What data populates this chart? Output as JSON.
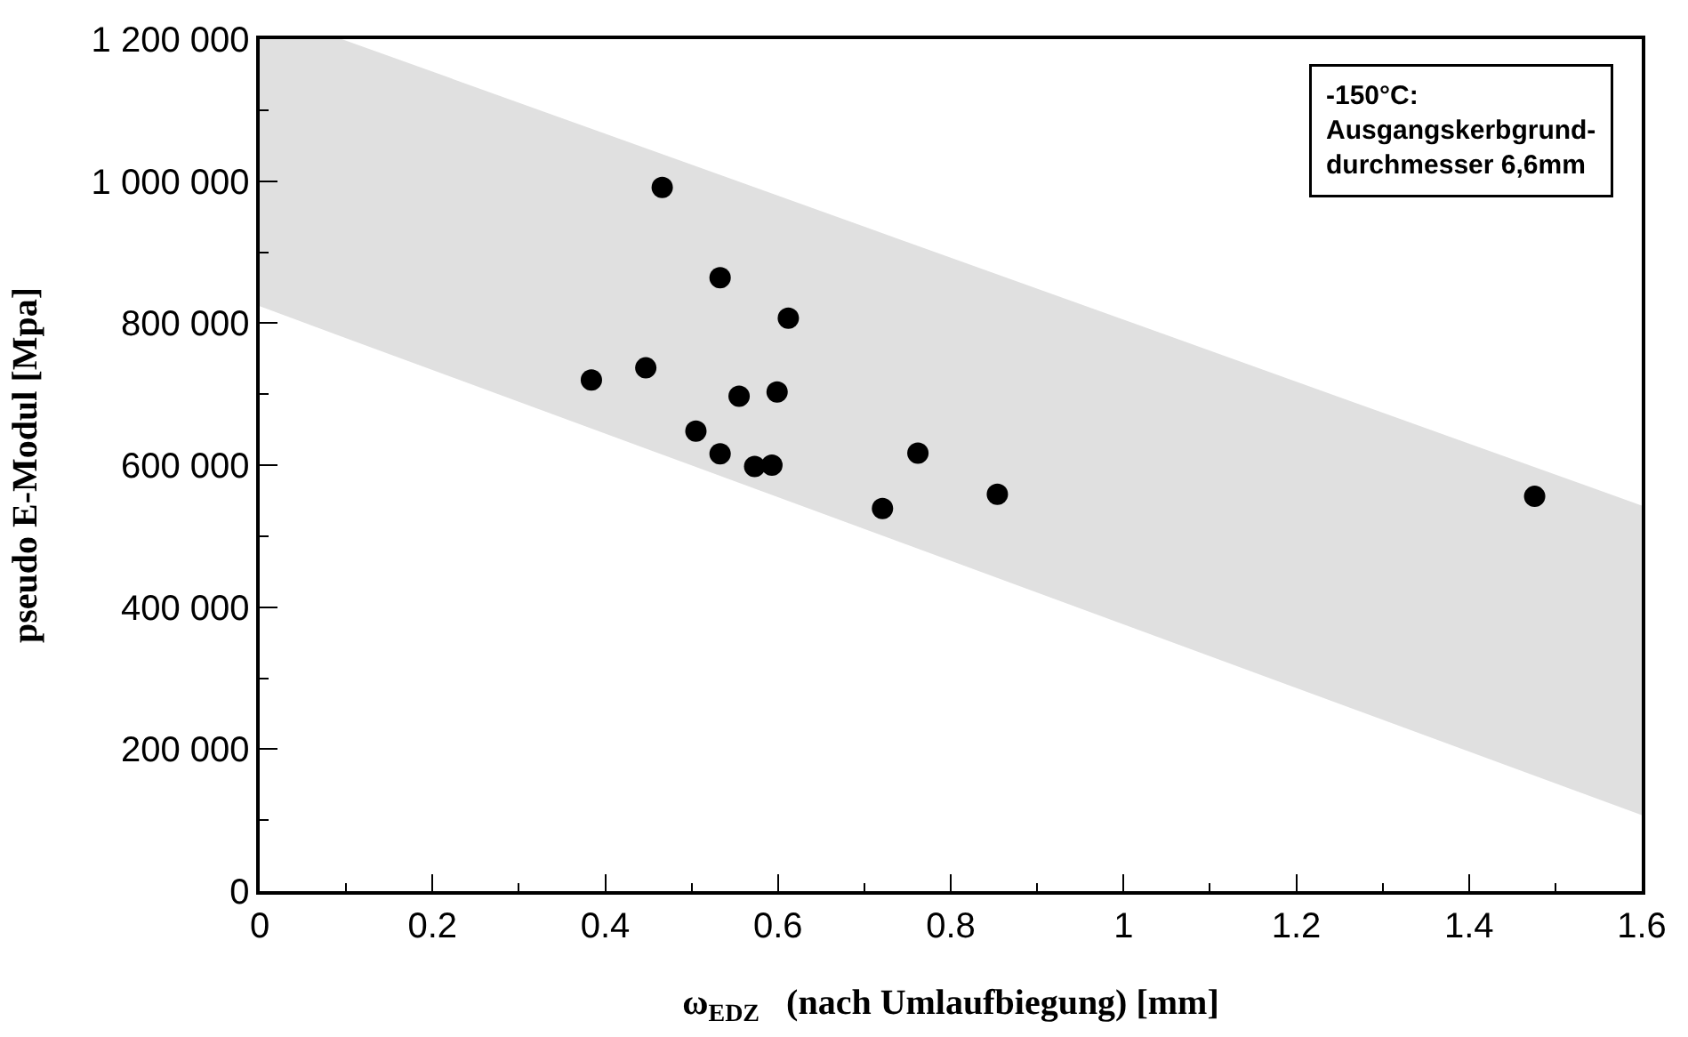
{
  "chart_data": {
    "type": "scatter",
    "xlabel": "ω$_{EDZ}$   (nach Umlaufbiegung) [mm]",
    "ylabel": "pseudo E-Modul [Mpa]",
    "annotations": [
      "-150°C:\nAusgangskerbgrund-\ndurchmesser 6,6mm"
    ],
    "series": [
      {
        "type": "line",
        "color": "#e0e0e0",
        "x": [
          0,
          0.095,
          1.6
        ],
        "values": [
          null,
          null,
          null
        ],
        "upper": [
          1200000,
          1200000,
          543000
        ],
        "lower": [
          824000,
          781000,
          107000
        ]
      },
      {
        "color": "#000000",
        "marker": "circle",
        "x": [
          0.466,
          0.533,
          0.612,
          0.384,
          0.447,
          0.555,
          0.599,
          0.505,
          0.533,
          0.573,
          0.593,
          0.762,
          0.721,
          1.476,
          0.854
        ],
        "values": [
          991000,
          864000,
          807000,
          720000,
          737000,
          697000,
          703000,
          648000,
          616000,
          598000,
          600000,
          617000,
          539000,
          556000,
          559000
        ]
      }
    ],
    "xlim": [
      0,
      1.6
    ],
    "xticks": [
      0,
      {
        "value": 0.1,
        "label": null
      },
      0.2,
      {
        "value": 0.3,
        "label": null
      },
      0.4,
      {
        "value": 0.5,
        "label": null
      },
      0.6,
      {
        "value": 0.7,
        "label": null
      },
      0.8,
      {
        "value": 0.9,
        "label": null
      },
      1,
      {
        "value": 1.1,
        "label": null
      },
      1.2,
      {
        "value": 1.3,
        "label": null
      },
      1.4,
      {
        "value": 1.5,
        "label": null
      },
      1.6
    ],
    "ylim": [
      0,
      1200000
    ],
    "yticks": [
      {
        "value": 0,
        "label": "0"
      },
      {
        "value": 100000,
        "label": null
      },
      {
        "value": 200000,
        "label": "200 000"
      },
      {
        "value": 300000,
        "label": null
      },
      {
        "value": 400000,
        "label": "400 000"
      },
      {
        "value": 500000,
        "label": null
      },
      {
        "value": 600000,
        "label": "600 000"
      },
      {
        "value": 700000,
        "label": null
      },
      {
        "value": 800000,
        "label": "800 000"
      },
      {
        "value": 900000,
        "label": null
      },
      {
        "value": 1000000,
        "label": "1 000 000"
      },
      {
        "value": 1100000,
        "label": null
      },
      {
        "value": 1200000,
        "label": "1 200 000"
      }
    ]
  }
}
